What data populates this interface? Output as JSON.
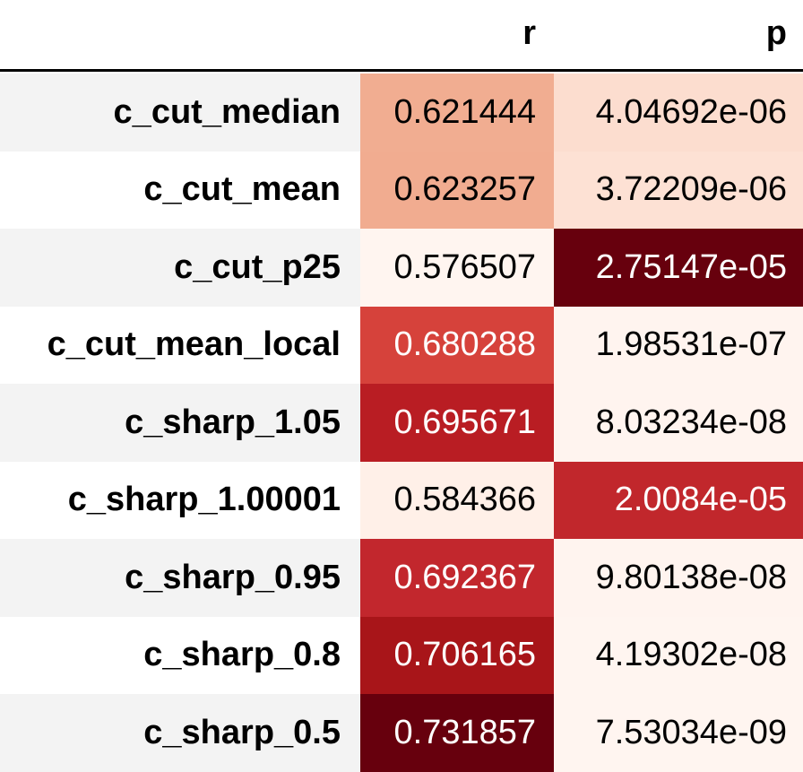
{
  "columns": {
    "r": "r",
    "p": "p"
  },
  "rows": [
    {
      "name": "c_cut_median",
      "r": "0.621444",
      "p": "4.04692e-06",
      "r_color": "#f1ad91",
      "p_color": "#fcddcf",
      "r_text": "#000000",
      "p_text": "#000000",
      "row_bg": "#f3f3f3"
    },
    {
      "name": "c_cut_mean",
      "r": "0.623257",
      "p": "3.72209e-06",
      "r_color": "#f1ac90",
      "p_color": "#fde1d4",
      "r_text": "#000000",
      "p_text": "#000000",
      "row_bg": "#ffffff"
    },
    {
      "name": "c_cut_p25",
      "r": "0.576507",
      "p": "2.75147e-05",
      "r_color": "#fff5f0",
      "p_color": "#67000d",
      "r_text": "#000000",
      "p_text": "#ffffff",
      "row_bg": "#f3f3f3"
    },
    {
      "name": "c_cut_mean_local",
      "r": "0.680288",
      "p": "1.98531e-07",
      "r_color": "#d6423b",
      "p_color": "#fff4ef",
      "r_text": "#ffffff",
      "p_text": "#000000",
      "row_bg": "#ffffff"
    },
    {
      "name": "c_sharp_1.05",
      "r": "0.695671",
      "p": "8.03234e-08",
      "r_color": "#b91d23",
      "p_color": "#fff4ef",
      "r_text": "#ffffff",
      "p_text": "#000000",
      "row_bg": "#f3f3f3"
    },
    {
      "name": "c_sharp_1.00001",
      "r": "0.584366",
      "p": "2.0084e-05",
      "r_color": "#fff0e8",
      "p_color": "#c1272c",
      "r_text": "#000000",
      "p_text": "#ffffff",
      "row_bg": "#ffffff"
    },
    {
      "name": "c_sharp_0.95",
      "r": "0.692367",
      "p": "9.80138e-08",
      "r_color": "#c2272d",
      "p_color": "#fff4ef",
      "r_text": "#ffffff",
      "p_text": "#000000",
      "row_bg": "#f3f3f3"
    },
    {
      "name": "c_sharp_0.8",
      "r": "0.706165",
      "p": "4.19302e-08",
      "r_color": "#a81519",
      "p_color": "#fff5f0",
      "r_text": "#ffffff",
      "p_text": "#000000",
      "row_bg": "#ffffff"
    },
    {
      "name": "c_sharp_0.5",
      "r": "0.731857",
      "p": "7.53034e-09",
      "r_color": "#67000d",
      "p_color": "#fff5f0",
      "r_text": "#ffffff",
      "p_text": "#000000",
      "row_bg": "#f3f3f3"
    }
  ]
}
